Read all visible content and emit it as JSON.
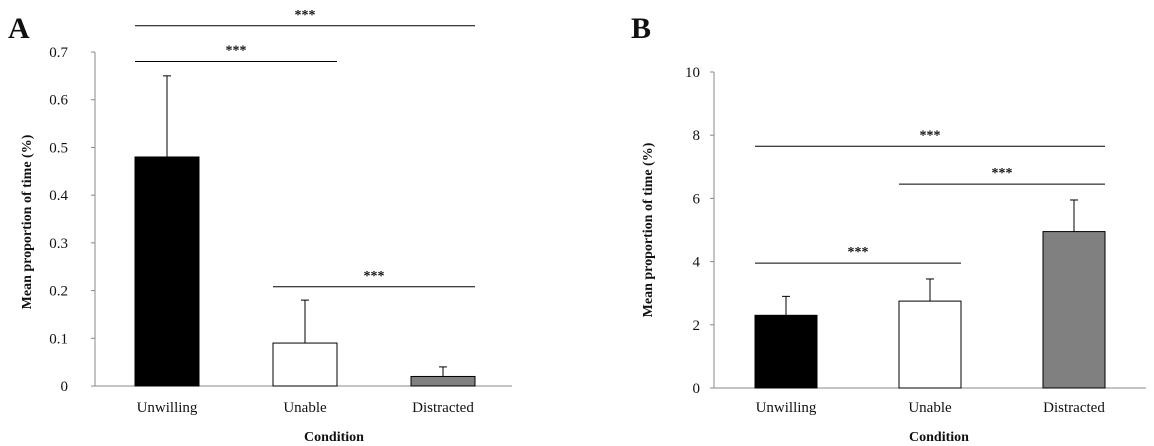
{
  "figure": {
    "panel_labels": [
      "A",
      "B"
    ]
  },
  "chart_data": [
    {
      "type": "bar",
      "panel": "A",
      "categories": [
        "Unwilling",
        "Unable",
        "Distracted"
      ],
      "values": [
        0.48,
        0.09,
        0.02
      ],
      "errors": [
        0.17,
        0.09,
        0.02
      ],
      "bar_colors": [
        "#000000",
        "#ffffff",
        "#808080"
      ],
      "xlabel": "Condition",
      "ylabel": "Mean proportion of time (%)",
      "ylim": [
        0,
        0.7
      ],
      "yticks": [
        0,
        0.1,
        0.2,
        0.3,
        0.4,
        0.5,
        0.6,
        0.7
      ],
      "ytick_labels": [
        "0",
        "0.1",
        "0.2",
        "0.3",
        "0.4",
        "0.5",
        "0.6",
        "0.7"
      ],
      "grid": false,
      "legend": "none",
      "significance": [
        {
          "from": "Unwilling",
          "to": "Distracted",
          "y": 0.755,
          "label": "***"
        },
        {
          "from": "Unwilling",
          "to": "Unable",
          "y": 0.68,
          "label": "***"
        },
        {
          "from": "Unable",
          "to": "Distracted",
          "y": 0.208,
          "label": "***"
        }
      ]
    },
    {
      "type": "bar",
      "panel": "B",
      "categories": [
        "Unwilling",
        "Unable",
        "Distracted"
      ],
      "values": [
        2.3,
        2.75,
        4.95
      ],
      "errors": [
        0.6,
        0.7,
        1.0
      ],
      "bar_colors": [
        "#000000",
        "#ffffff",
        "#808080"
      ],
      "xlabel": "Condition",
      "ylabel": "Mean proportion of time (%)",
      "ylim": [
        0,
        10
      ],
      "yticks": [
        0,
        2,
        4,
        6,
        8,
        10
      ],
      "ytick_labels": [
        "0",
        "2",
        "4",
        "6",
        "8",
        "10"
      ],
      "grid": false,
      "legend": "none",
      "significance": [
        {
          "from": "Unwilling",
          "to": "Distracted",
          "y": 7.65,
          "label": "***"
        },
        {
          "from": "Unable",
          "to": "Distracted",
          "y": 6.45,
          "label": "***"
        },
        {
          "from": "Unwilling",
          "to": "Unable",
          "y": 3.95,
          "label": "***"
        }
      ]
    }
  ]
}
